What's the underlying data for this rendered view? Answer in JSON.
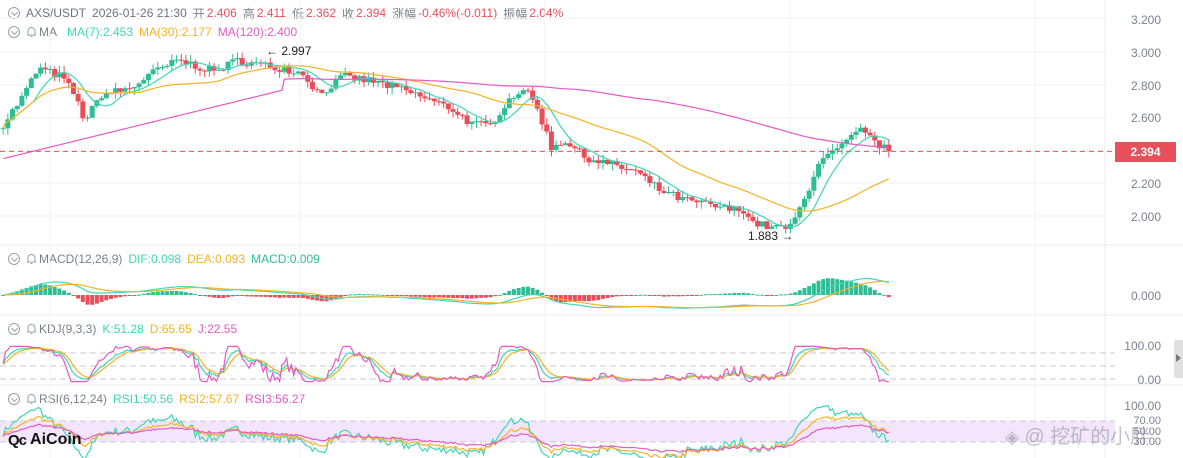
{
  "header": {
    "symbol": "AXS/USDT",
    "datetime": "2026-01-26 21:30",
    "open_label": "开",
    "open": "2.406",
    "high_label": "高",
    "high": "2.411",
    "low_label": "低",
    "low": "2.362",
    "close_label": "收",
    "close": "2.394",
    "change_label": "涨幅",
    "change": "-0.46%(-0.011)",
    "amplitude_label": "振幅",
    "amplitude": "2.04%"
  },
  "ma_legend": {
    "name": "MA",
    "ma7": "MA(7):2.453",
    "ma30": "MA(30):2.177",
    "ma120": "MA(120):2.400"
  },
  "macd_legend": {
    "name": "MACD(12,26,9)",
    "dif": "DIF:0.098",
    "dea": "DEA:0.093",
    "macd": "MACD:0.009"
  },
  "kdj_legend": {
    "name": "KDJ(9,3,3)",
    "k": "K:51.28",
    "d": "D:65.65",
    "j": "J:22.55"
  },
  "rsi_legend": {
    "name": "RSI(6,12,24)",
    "rsi1": "RSI1:50.56",
    "rsi2": "RSI2:57.67",
    "rsi3": "RSI3:56.27"
  },
  "price_axis": [
    "3.200",
    "3.000",
    "2.800",
    "2.600",
    "2.200",
    "2.000"
  ],
  "current_price": "2.394",
  "macd_axis": [
    "0.000"
  ],
  "kdj_axis": [
    "100.00",
    "0.00"
  ],
  "rsi_axis": [
    "100.00",
    "70.00",
    "50.00",
    "30.00"
  ],
  "annotations": {
    "high_marker": "← 2.997",
    "low_marker": "1.883 →"
  },
  "branding": {
    "logo": "AiCoin",
    "watermark": "@ 挖矿的小胖"
  },
  "colors": {
    "up": "#2ebd94",
    "down": "#ea4c58",
    "ma7": "#3fd6b8",
    "ma30": "#f5b324",
    "ma120": "#e659c5",
    "grid": "#f1f2f4",
    "price_tag": "#e8505b"
  },
  "chart_data": {
    "type": "candlestick",
    "title": "AXS/USDT",
    "timeframe_shown": "2026-01-26 21:30 (last bar)",
    "ylim": [
      1.85,
      3.25
    ],
    "yticks": [
      2.0,
      2.2,
      2.4,
      2.6,
      2.8,
      3.0,
      3.2
    ],
    "close_path_keypoints": [
      [
        0,
        2.56
      ],
      [
        8,
        2.72
      ],
      [
        15,
        2.9
      ],
      [
        25,
        2.85
      ],
      [
        30,
        2.75
      ],
      [
        35,
        2.58
      ],
      [
        42,
        2.74
      ],
      [
        55,
        2.78
      ],
      [
        62,
        2.86
      ],
      [
        75,
        2.95
      ],
      [
        90,
        2.88
      ],
      [
        100,
        2.95
      ],
      [
        110,
        2.92
      ],
      [
        120,
        2.9
      ],
      [
        128,
        2.87
      ],
      [
        135,
        2.74
      ],
      [
        145,
        2.85
      ],
      [
        158,
        2.82
      ],
      [
        168,
        2.78
      ],
      [
        180,
        2.72
      ],
      [
        192,
        2.65
      ],
      [
        200,
        2.56
      ],
      [
        208,
        2.55
      ],
      [
        215,
        2.7
      ],
      [
        222,
        2.78
      ],
      [
        228,
        2.66
      ],
      [
        234,
        2.42
      ],
      [
        240,
        2.46
      ],
      [
        248,
        2.36
      ],
      [
        258,
        2.32
      ],
      [
        270,
        2.27
      ],
      [
        280,
        2.16
      ],
      [
        290,
        2.1
      ],
      [
        300,
        2.07
      ],
      [
        310,
        2.04
      ],
      [
        316,
        2.04
      ],
      [
        320,
        1.96
      ],
      [
        328,
        1.93
      ],
      [
        336,
        1.93
      ],
      [
        342,
        2.1
      ],
      [
        348,
        2.33
      ],
      [
        354,
        2.38
      ],
      [
        360,
        2.45
      ],
      [
        366,
        2.52
      ],
      [
        372,
        2.45
      ],
      [
        378,
        2.394
      ]
    ],
    "bars": 379,
    "high": {
      "value": 2.997,
      "label": "2.997"
    },
    "low": {
      "value": 1.883,
      "label": "1.883"
    },
    "last_close": 2.394,
    "indicators": {
      "MA7": 2.453,
      "MA30": 2.177,
      "MA120": 2.4,
      "DIF": 0.098,
      "DEA": 0.093,
      "MACD": 0.009,
      "K": 51.28,
      "D": 65.65,
      "J": 22.55,
      "RSI1": 50.56,
      "RSI2": 57.67,
      "RSI3": 56.27
    }
  }
}
